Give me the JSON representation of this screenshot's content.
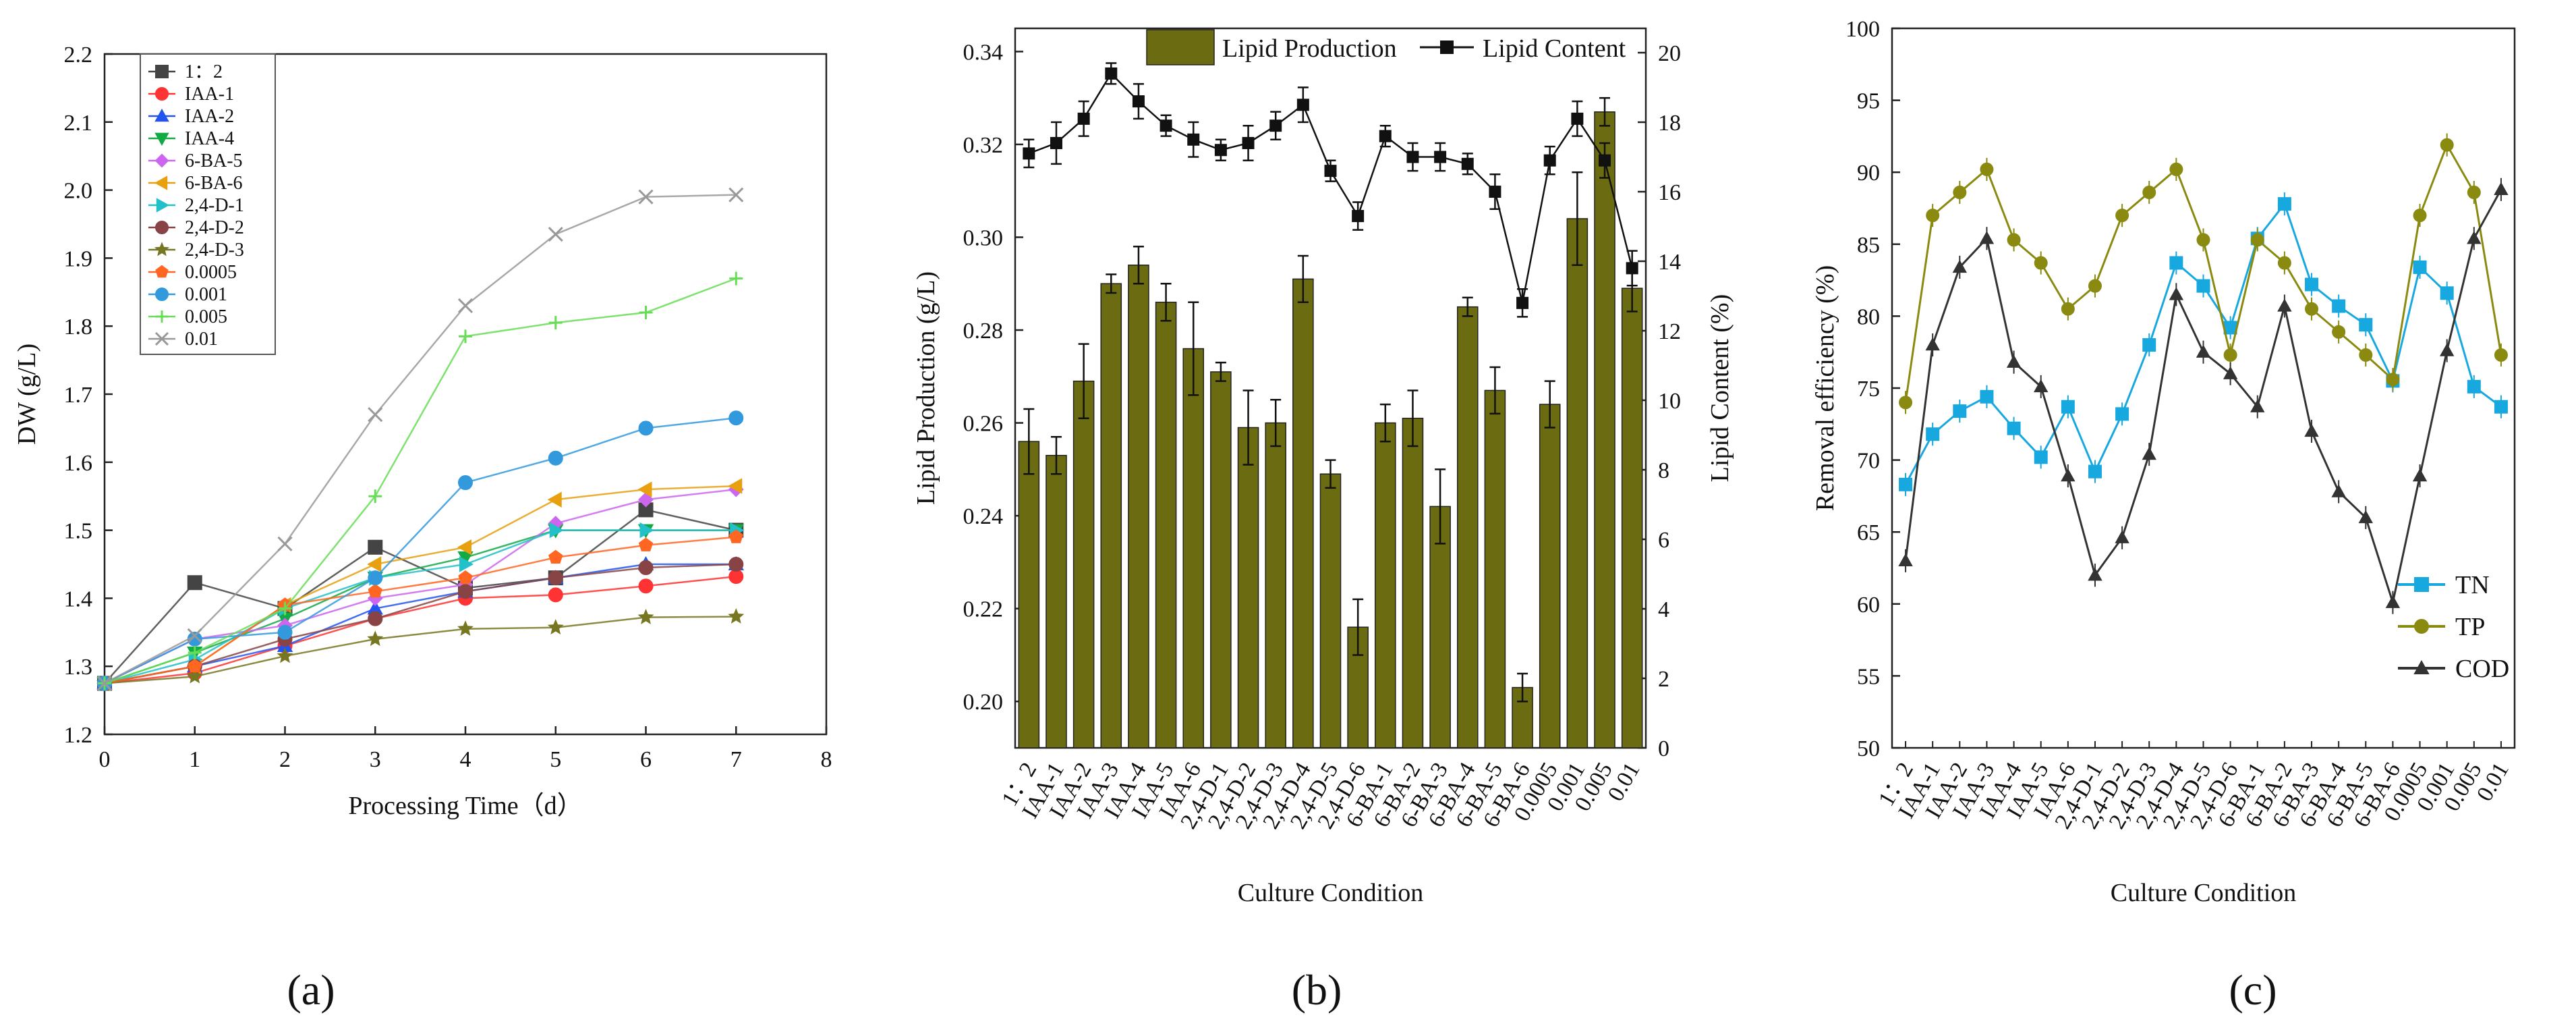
{
  "figure": {
    "panel_labels": [
      "(a)",
      "(b)",
      "(c)"
    ]
  },
  "chart_data": [
    {
      "type": "line",
      "panel": "(a)",
      "xlabel": "Processing Time（d）",
      "ylabel": "DW (g/L)",
      "xlim": [
        0,
        8
      ],
      "ylim": [
        1.2,
        2.2
      ],
      "xticks": [
        0,
        1,
        2,
        3,
        4,
        5,
        6,
        7,
        8
      ],
      "yticks": [
        1.2,
        1.3,
        1.4,
        1.5,
        1.6,
        1.7,
        1.8,
        1.9,
        2.0,
        2.1,
        2.2
      ],
      "x": [
        0,
        1,
        2,
        3,
        4,
        5,
        6,
        7
      ],
      "legend_position": "top-left",
      "series": [
        {
          "name": "1：2",
          "color": "#444444",
          "marker": "square",
          "values": [
            1.275,
            1.423,
            1.385,
            1.475,
            1.415,
            1.43,
            1.53,
            1.5
          ]
        },
        {
          "name": "IAA-1",
          "color": "#ff3333",
          "marker": "circle",
          "values": [
            1.275,
            1.29,
            1.33,
            1.37,
            1.4,
            1.405,
            1.418,
            1.432
          ]
        },
        {
          "name": "IAA-2",
          "color": "#2255ee",
          "marker": "triangle-up",
          "values": [
            1.275,
            1.3,
            1.33,
            1.385,
            1.41,
            1.43,
            1.45,
            1.45
          ]
        },
        {
          "name": "IAA-4",
          "color": "#11aa44",
          "marker": "triangle-down",
          "values": [
            1.275,
            1.32,
            1.37,
            1.43,
            1.46,
            1.5,
            1.5,
            1.5
          ]
        },
        {
          "name": "6-BA-5",
          "color": "#cc66ee",
          "marker": "diamond",
          "values": [
            1.275,
            1.34,
            1.36,
            1.4,
            1.42,
            1.51,
            1.545,
            1.56
          ]
        },
        {
          "name": "6-BA-6",
          "color": "#e8a010",
          "marker": "triangle-left",
          "values": [
            1.275,
            1.3,
            1.39,
            1.45,
            1.475,
            1.545,
            1.56,
            1.565
          ]
        },
        {
          "name": "2,4-D-1",
          "color": "#22c0c8",
          "marker": "triangle-right",
          "values": [
            1.275,
            1.31,
            1.385,
            1.43,
            1.45,
            1.5,
            1.5,
            1.5
          ]
        },
        {
          "name": "2,4-D-2",
          "color": "#884444",
          "marker": "circle",
          "values": [
            1.275,
            1.3,
            1.34,
            1.37,
            1.41,
            1.43,
            1.445,
            1.45
          ]
        },
        {
          "name": "2,4-D-3",
          "color": "#777722",
          "marker": "star",
          "values": [
            1.275,
            1.285,
            1.315,
            1.34,
            1.355,
            1.357,
            1.372,
            1.373
          ]
        },
        {
          "name": "0.0005",
          "color": "#ff6622",
          "marker": "pentagon",
          "values": [
            1.275,
            1.3,
            1.39,
            1.41,
            1.43,
            1.46,
            1.478,
            1.49
          ]
        },
        {
          "name": "0.001",
          "color": "#3399dd",
          "marker": "circle",
          "values": [
            1.275,
            1.34,
            1.35,
            1.43,
            1.57,
            1.606,
            1.65,
            1.665
          ]
        },
        {
          "name": "0.005",
          "color": "#66dd55",
          "marker": "plus",
          "values": [
            1.275,
            1.32,
            1.385,
            1.55,
            1.785,
            1.805,
            1.82,
            1.87
          ]
        },
        {
          "name": "0.01",
          "color": "#999999",
          "marker": "x",
          "values": [
            1.275,
            1.345,
            1.48,
            1.67,
            1.83,
            1.935,
            1.99,
            1.993
          ]
        }
      ]
    },
    {
      "type": "bar+line",
      "panel": "(b)",
      "xlabel": "Culture Condition",
      "ylabel_left": "Lipid Production (g/L)",
      "ylabel_right": "Lipid Content (%)",
      "ylim_left": [
        0.19,
        0.345
      ],
      "ylim_right": [
        0,
        20.7
      ],
      "yticks_left": [
        0.2,
        0.22,
        0.24,
        0.26,
        0.28,
        0.3,
        0.32,
        0.34
      ],
      "yticks_right": [
        0,
        2,
        4,
        6,
        8,
        10,
        12,
        14,
        16,
        18,
        20
      ],
      "categories": [
        "1：2",
        "IAA-1",
        "IAA-2",
        "IAA-3",
        "IAA-4",
        "IAA-5",
        "IAA-6",
        "2,4-D-1",
        "2,4-D-2",
        "2,4-D-3",
        "2,4-D-4",
        "2,4-D-5",
        "2,4-D-6",
        "6-BA-1",
        "6-BA-2",
        "6-BA-3",
        "6-BA-4",
        "6-BA-5",
        "6-BA-6",
        "0.0005",
        "0.001",
        "0.005",
        "0.01"
      ],
      "legend": [
        "Lipid Production",
        "Lipid Content"
      ],
      "legend_position": "top",
      "bar_color": "#6b6b12",
      "series": [
        {
          "name": "Lipid Production",
          "axis": "left",
          "type": "bar",
          "values": [
            0.256,
            0.253,
            0.269,
            0.29,
            0.294,
            0.286,
            0.276,
            0.271,
            0.259,
            0.26,
            0.291,
            0.249,
            0.216,
            0.26,
            0.261,
            0.242,
            0.285,
            0.267,
            0.203,
            0.264,
            0.304,
            0.327,
            0.289
          ],
          "errors": [
            0.007,
            0.004,
            0.008,
            0.002,
            0.004,
            0.004,
            0.01,
            0.002,
            0.008,
            0.005,
            0.005,
            0.003,
            0.006,
            0.004,
            0.006,
            0.008,
            0.002,
            0.005,
            0.003,
            0.005,
            0.01,
            0.003,
            0.005
          ]
        },
        {
          "name": "Lipid Content",
          "axis": "right",
          "type": "line",
          "values": [
            17.1,
            17.4,
            18.1,
            19.4,
            18.6,
            17.9,
            17.5,
            17.2,
            17.4,
            17.9,
            18.5,
            16.6,
            15.3,
            17.6,
            17.0,
            17.0,
            16.8,
            16.0,
            12.8,
            16.9,
            18.1,
            16.9,
            13.8
          ],
          "errors": [
            0.4,
            0.6,
            0.5,
            0.3,
            0.5,
            0.3,
            0.5,
            0.3,
            0.5,
            0.4,
            0.5,
            0.3,
            0.4,
            0.3,
            0.4,
            0.4,
            0.3,
            0.5,
            0.4,
            0.4,
            0.5,
            0.5,
            0.5
          ]
        }
      ]
    },
    {
      "type": "line",
      "panel": "(c)",
      "xlabel": "Culture Condition",
      "ylabel": "Removal efficiency (%)",
      "ylim": [
        50,
        100
      ],
      "yticks": [
        50,
        55,
        60,
        65,
        70,
        75,
        80,
        85,
        90,
        95,
        100
      ],
      "categories": [
        "1：2",
        "IAA-1",
        "IAA-2",
        "IAA-3",
        "IAA-4",
        "IAA-5",
        "IAA-6",
        "2,4-D-1",
        "2,4-D-2",
        "2,4-D-3",
        "2,4-D-4",
        "2,4-D-5",
        "2,4-D-6",
        "6-BA-1",
        "6-BA-2",
        "6-BA-3",
        "6-BA-4",
        "6-BA-5",
        "6-BA-6",
        "0.0005",
        "0.001",
        "0.005",
        "0.01"
      ],
      "legend_position": "bottom-right",
      "series": [
        {
          "name": "TN",
          "color": "#18a8e0",
          "marker": "square",
          "values": [
            68.3,
            71.8,
            73.4,
            74.4,
            72.2,
            70.2,
            73.7,
            69.2,
            73.2,
            78.0,
            83.7,
            82.1,
            79.2,
            85.4,
            87.8,
            82.2,
            80.7,
            79.4,
            75.5,
            83.4,
            81.6,
            75.1,
            73.7
          ]
        },
        {
          "name": "TP",
          "color": "#8a8a10",
          "marker": "circle",
          "values": [
            74.0,
            87.0,
            88.6,
            90.2,
            85.3,
            83.7,
            80.5,
            82.1,
            87.0,
            88.6,
            90.2,
            85.3,
            77.3,
            85.3,
            83.7,
            80.5,
            78.9,
            77.3,
            75.6,
            87.0,
            91.9,
            88.6,
            77.3
          ]
        },
        {
          "name": "COD",
          "color": "#333333",
          "marker": "triangle-up",
          "values": [
            63.0,
            78.0,
            83.4,
            85.4,
            76.8,
            75.1,
            68.9,
            62.0,
            64.6,
            70.4,
            81.5,
            77.5,
            76.0,
            73.7,
            80.7,
            72.0,
            67.8,
            66.0,
            60.1,
            68.9,
            77.6,
            85.4,
            88.8
          ]
        }
      ]
    }
  ]
}
